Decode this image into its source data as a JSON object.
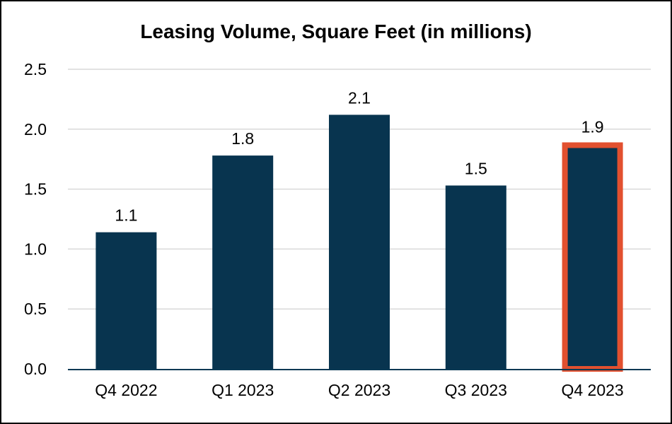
{
  "chart_data": {
    "type": "bar",
    "title": "Leasing Volume, Square Feet (in millions)",
    "categories": [
      "Q4 2022",
      "Q1 2023",
      "Q2 2023",
      "Q3 2023",
      "Q4 2023"
    ],
    "values": [
      1.14,
      1.78,
      2.12,
      1.53,
      1.89
    ],
    "data_labels": [
      "1.1",
      "1.8",
      "2.1",
      "1.5",
      "1.9"
    ],
    "y_ticks": [
      "0.0",
      "0.5",
      "1.0",
      "1.5",
      "2.0",
      "2.5"
    ],
    "ylim": [
      0,
      2.5
    ],
    "xlabel": "",
    "ylabel": "",
    "grid": true,
    "highlight_index": 4,
    "colors": {
      "bar": "#08344f",
      "highlight_border": "#e2502f",
      "grid": "#d9d9d9"
    }
  }
}
